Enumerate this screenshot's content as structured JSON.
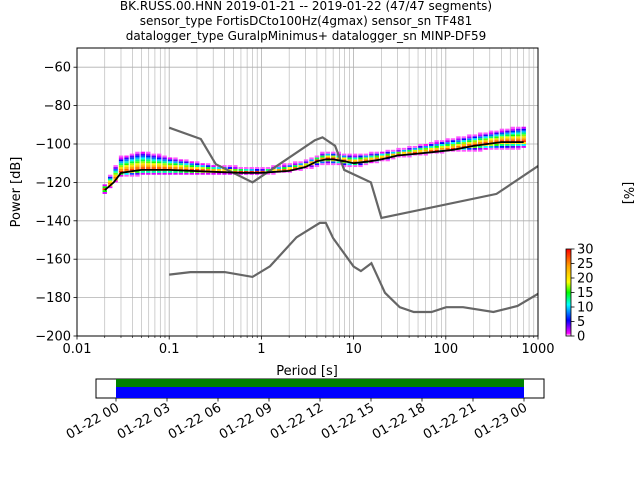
{
  "title_lines": [
    "BK.RUSS.00.HNN   2019-01-21 -- 2019-01-22  (47/47 segments)",
    "sensor_type FortisDCto100Hz(4gmax) sensor_sn TF481",
    "datalogger_type GuralpMinimus+ datalogger_sn MINP-DF59"
  ],
  "chart_data": [
    {
      "type": "heatmap",
      "xlabel": "Period [s]",
      "ylabel": "Power [dB]",
      "xscale": "log",
      "xlim": [
        0.01,
        1000
      ],
      "ylim": [
        -200,
        -50
      ],
      "xticks": [
        0.01,
        0.1,
        1,
        10,
        100,
        1000
      ],
      "xtick_labels": [
        "0.01",
        "0.1",
        "1",
        "10",
        "100",
        "1000"
      ],
      "yticks": [
        -200,
        -180,
        -160,
        -140,
        -120,
        -100,
        -80,
        -60
      ],
      "grid": true,
      "colorbar": {
        "label": "[%]",
        "min": 0,
        "max": 30,
        "ticks": [
          0,
          5,
          10,
          15,
          20,
          25,
          30
        ],
        "colormap": "pqlx"
      },
      "noise_models": [
        {
          "model": "NHNM",
          "color": "#666666",
          "points": [
            [
              0.1,
              -91.5
            ],
            [
              0.22,
              -97.4
            ],
            [
              0.32,
              -110.5
            ],
            [
              0.8,
              -120
            ],
            [
              3.8,
              -98
            ],
            [
              4.6,
              -96.5
            ],
            [
              6.3,
              -101
            ],
            [
              7.9,
              -113.5
            ],
            [
              15.4,
              -120
            ],
            [
              20,
              -138.5
            ],
            [
              354.8,
              -126
            ],
            [
              1000,
              -111.5
            ]
          ]
        },
        {
          "model": "NLNM",
          "color": "#666666",
          "points": [
            [
              0.1,
              -168
            ],
            [
              0.17,
              -166.7
            ],
            [
              0.4,
              -166.7
            ],
            [
              0.8,
              -169.2
            ],
            [
              1.24,
              -163.7
            ],
            [
              2.4,
              -148.6
            ],
            [
              4.3,
              -141.1
            ],
            [
              5,
              -141.1
            ],
            [
              6,
              -149
            ],
            [
              10,
              -163.8
            ],
            [
              12,
              -166.2
            ],
            [
              15.6,
              -162.1
            ],
            [
              21.9,
              -177.5
            ],
            [
              31.6,
              -185
            ],
            [
              45,
              -187.5
            ],
            [
              70,
              -187.5
            ],
            [
              101,
              -185
            ],
            [
              154,
              -185
            ],
            [
              328,
              -187.5
            ],
            [
              600,
              -184.4
            ],
            [
              1000,
              -178
            ]
          ]
        }
      ],
      "mode_line": {
        "name": "mode",
        "color": "#000000",
        "points": [
          [
            0.02,
            -124
          ],
          [
            0.025,
            -120
          ],
          [
            0.03,
            -115
          ],
          [
            0.05,
            -113.5
          ],
          [
            0.1,
            -113.5
          ],
          [
            0.3,
            -114.5
          ],
          [
            0.6,
            -115
          ],
          [
            1,
            -115
          ],
          [
            2,
            -114
          ],
          [
            3,
            -112
          ],
          [
            4,
            -109
          ],
          [
            5,
            -108
          ],
          [
            6,
            -108
          ],
          [
            8,
            -109
          ],
          [
            10,
            -110
          ],
          [
            15,
            -109
          ],
          [
            20,
            -108
          ],
          [
            30,
            -106
          ],
          [
            50,
            -105
          ],
          [
            80,
            -104
          ],
          [
            120,
            -103
          ],
          [
            200,
            -101
          ],
          [
            400,
            -99
          ],
          [
            700,
            -99
          ]
        ]
      },
      "density_spread": {
        "lower_db": [
          [
            0.02,
            -126
          ],
          [
            0.03,
            -117
          ],
          [
            0.05,
            -116
          ],
          [
            0.3,
            -116
          ],
          [
            1,
            -116
          ],
          [
            3,
            -113
          ],
          [
            5,
            -110
          ],
          [
            10,
            -112
          ],
          [
            30,
            -107
          ],
          [
            100,
            -104
          ],
          [
            700,
            -102
          ]
        ],
        "upper_db": [
          [
            0.02,
            -122
          ],
          [
            0.03,
            -108
          ],
          [
            0.05,
            -105
          ],
          [
            0.1,
            -108
          ],
          [
            0.3,
            -112
          ],
          [
            1,
            -114
          ],
          [
            3,
            -110
          ],
          [
            5,
            -105
          ],
          [
            10,
            -107
          ],
          [
            30,
            -104
          ],
          [
            100,
            -99
          ],
          [
            700,
            -92
          ]
        ]
      }
    },
    {
      "type": "timeline",
      "xtick_labels": [
        "01-22 00",
        "01-22 03",
        "01-22 06",
        "01-22 09",
        "01-22 12",
        "01-22 15",
        "01-22 18",
        "01-22 21",
        "01-23 00"
      ],
      "bars": [
        {
          "color": "#008000"
        },
        {
          "color": "#0000ff"
        }
      ]
    }
  ]
}
